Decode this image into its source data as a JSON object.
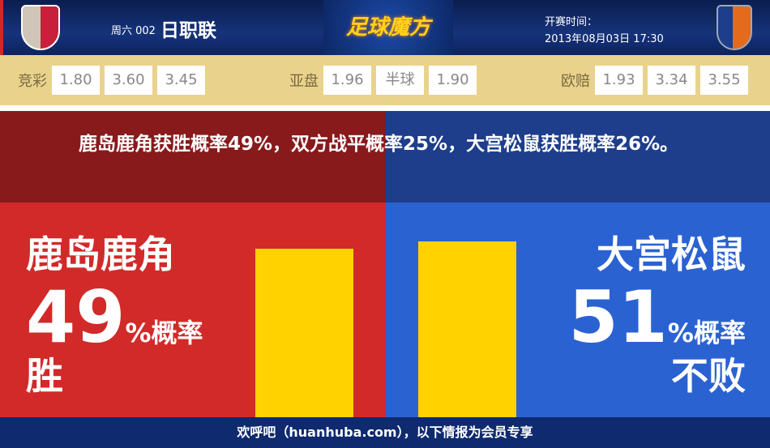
{
  "header": {
    "day_code": "周六 002",
    "league": "日职联",
    "brand": "足球魔方",
    "kickoff_label": "开赛时间：",
    "kickoff_time": "2013年08月03日 17:30",
    "home_logo": "kashima-antlers-crest",
    "away_logo": "omiya-ardija-crest"
  },
  "odds": {
    "jingcai": {
      "label": "竞彩",
      "values": [
        "1.80",
        "3.60",
        "3.45"
      ]
    },
    "yapan": {
      "label": "亚盘",
      "values": [
        "1.96",
        "半球",
        "1.90"
      ]
    },
    "ouzhi": {
      "label": "欧赔",
      "values": [
        "1.93",
        "3.34",
        "3.55"
      ]
    }
  },
  "summary": "鹿岛鹿角获胜概率49%，双方战平概率25%，大宫松鼠获胜概率26%。",
  "home": {
    "name": "鹿岛鹿角",
    "percent": "49",
    "percent_suffix": "%概率",
    "result": "胜",
    "bar_value": 49,
    "color": "#d12a29"
  },
  "away": {
    "name": "大宫松鼠",
    "percent": "51",
    "percent_suffix": "%概率",
    "result": "不败",
    "bar_value": 51,
    "color": "#2b62d2"
  },
  "bar_color": "#ffd200",
  "footer": "欢呼吧（huanhuba.com），以下情报为会员专享"
}
